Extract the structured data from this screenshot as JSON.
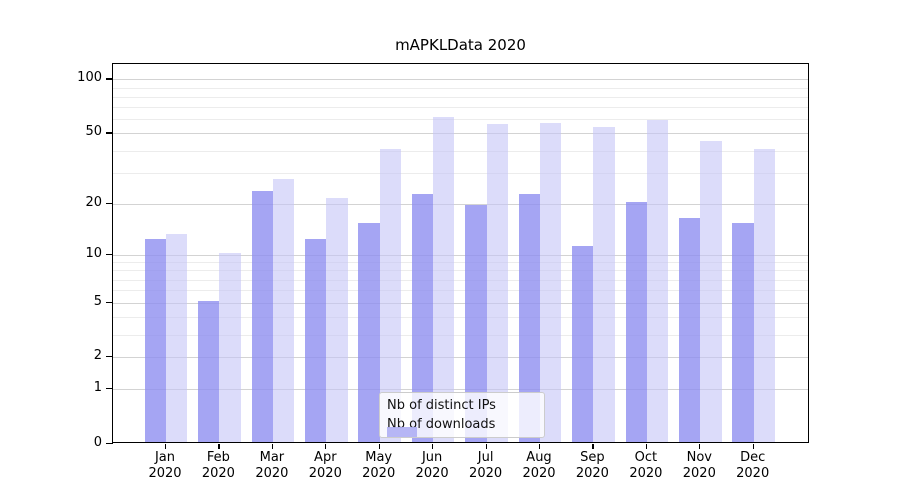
{
  "chart": {
    "title": "mAPKLData 2020",
    "accent_colors": {
      "series_ips": "#8f8ff0",
      "series_downloads": "#c2c2f6"
    }
  },
  "chart_data": {
    "type": "bar",
    "title": "mAPKLData 2020",
    "xlabel": "",
    "ylabel": "",
    "categories": [
      "Jan 2020",
      "Feb 2020",
      "Mar 2020",
      "Apr 2020",
      "May 2020",
      "Jun 2020",
      "Jul 2020",
      "Aug 2020",
      "Sep 2020",
      "Oct 2020",
      "Nov 2020",
      "Dec 2020"
    ],
    "series": [
      {
        "name": "Nb of distinct IPs",
        "color": "#8f8ff0",
        "values": [
          12,
          5,
          23,
          12,
          15,
          22,
          19,
          22,
          11,
          20,
          16,
          15
        ]
      },
      {
        "name": "Nb of downloads",
        "color": "#c2c2f6",
        "values": [
          13,
          10,
          27,
          21,
          40,
          60,
          55,
          56,
          53,
          58,
          44,
          40
        ]
      }
    ],
    "y_axis": {
      "scale": "symlog (position ~ ln(1+v))",
      "ticks": [
        0,
        1,
        2,
        5,
        10,
        20,
        50,
        100
      ],
      "minor_gridlines": [
        3,
        4,
        6,
        7,
        8,
        9,
        30,
        40,
        60,
        70,
        80,
        90
      ],
      "range": [
        0,
        123
      ],
      "grid": true
    },
    "legend": {
      "position": "lower center",
      "entries": [
        "Nb of distinct IPs",
        "Nb of downloads"
      ]
    }
  }
}
